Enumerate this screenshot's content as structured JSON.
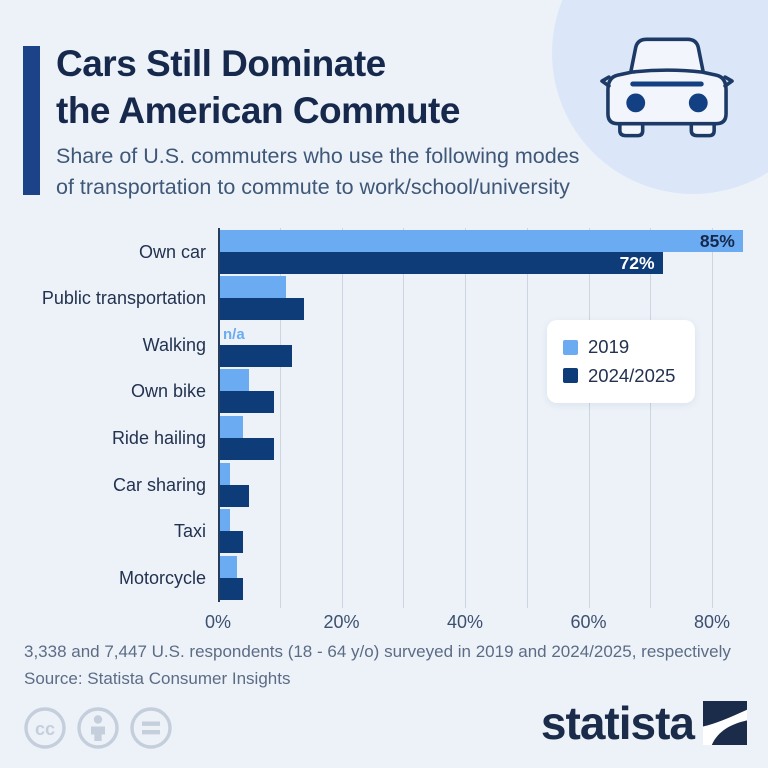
{
  "header": {
    "title_line1": "Cars Still Dominate",
    "title_line2": "the American Commute",
    "subtitle_line1": "Share of U.S. commuters who use the following modes",
    "subtitle_line2": "of transportation to commute to work/school/university",
    "title_color": "#16294d",
    "subtitle_color": "#3f5878",
    "accent_bar_color": "#1c4287",
    "hero_circle_color": "#dbe7f8",
    "car_icon_color": "#1d3a66"
  },
  "chart_data": {
    "type": "bar",
    "orientation": "horizontal",
    "categories": [
      "Own car",
      "Public transportation",
      "Walking",
      "Own bike",
      "Ride hailing",
      "Car sharing",
      "Taxi",
      "Motorcycle"
    ],
    "series": [
      {
        "name": "2019",
        "color": "#6aabf2",
        "values": [
          85,
          11,
          null,
          5,
          4,
          2,
          2,
          3
        ],
        "value_labels": [
          "85%",
          "",
          "n/a",
          "",
          "",
          "",
          "",
          ""
        ],
        "value_label_color": "#16294d"
      },
      {
        "name": "2024/2025",
        "color": "#0e3c78",
        "values": [
          72,
          14,
          12,
          9,
          9,
          5,
          4,
          4
        ],
        "value_labels": [
          "72%",
          "",
          "",
          "",
          "",
          "",
          "",
          ""
        ],
        "value_label_color": "#ffffff"
      }
    ],
    "na_label_color": "#6aabf2",
    "xlim": [
      0,
      85.5
    ],
    "xtick_values": [
      0,
      20,
      40,
      60,
      80
    ],
    "xtick_labels": [
      "0%",
      "20%",
      "40%",
      "60%",
      "80%"
    ],
    "gridline_values": [
      10,
      20,
      30,
      40,
      50,
      60,
      70,
      80
    ],
    "grid_on": true,
    "legend_position": "middle-right",
    "category_label_color": "#22324f",
    "axis_label_color": "#3c506f",
    "gridline_color": "#ccd5e0",
    "axis_line_color": "#263c5c"
  },
  "footer": {
    "note": "3,338 and 7,447 U.S. respondents (18 - 64 y/o) surveyed in 2019 and 2024/2025, respectively",
    "source": "Source: Statista Consumer Insights",
    "text_color": "#5c6c85",
    "license_icon_color": "#c5cedb",
    "brand_name": "statista",
    "brand_color": "#1b2b4a"
  }
}
